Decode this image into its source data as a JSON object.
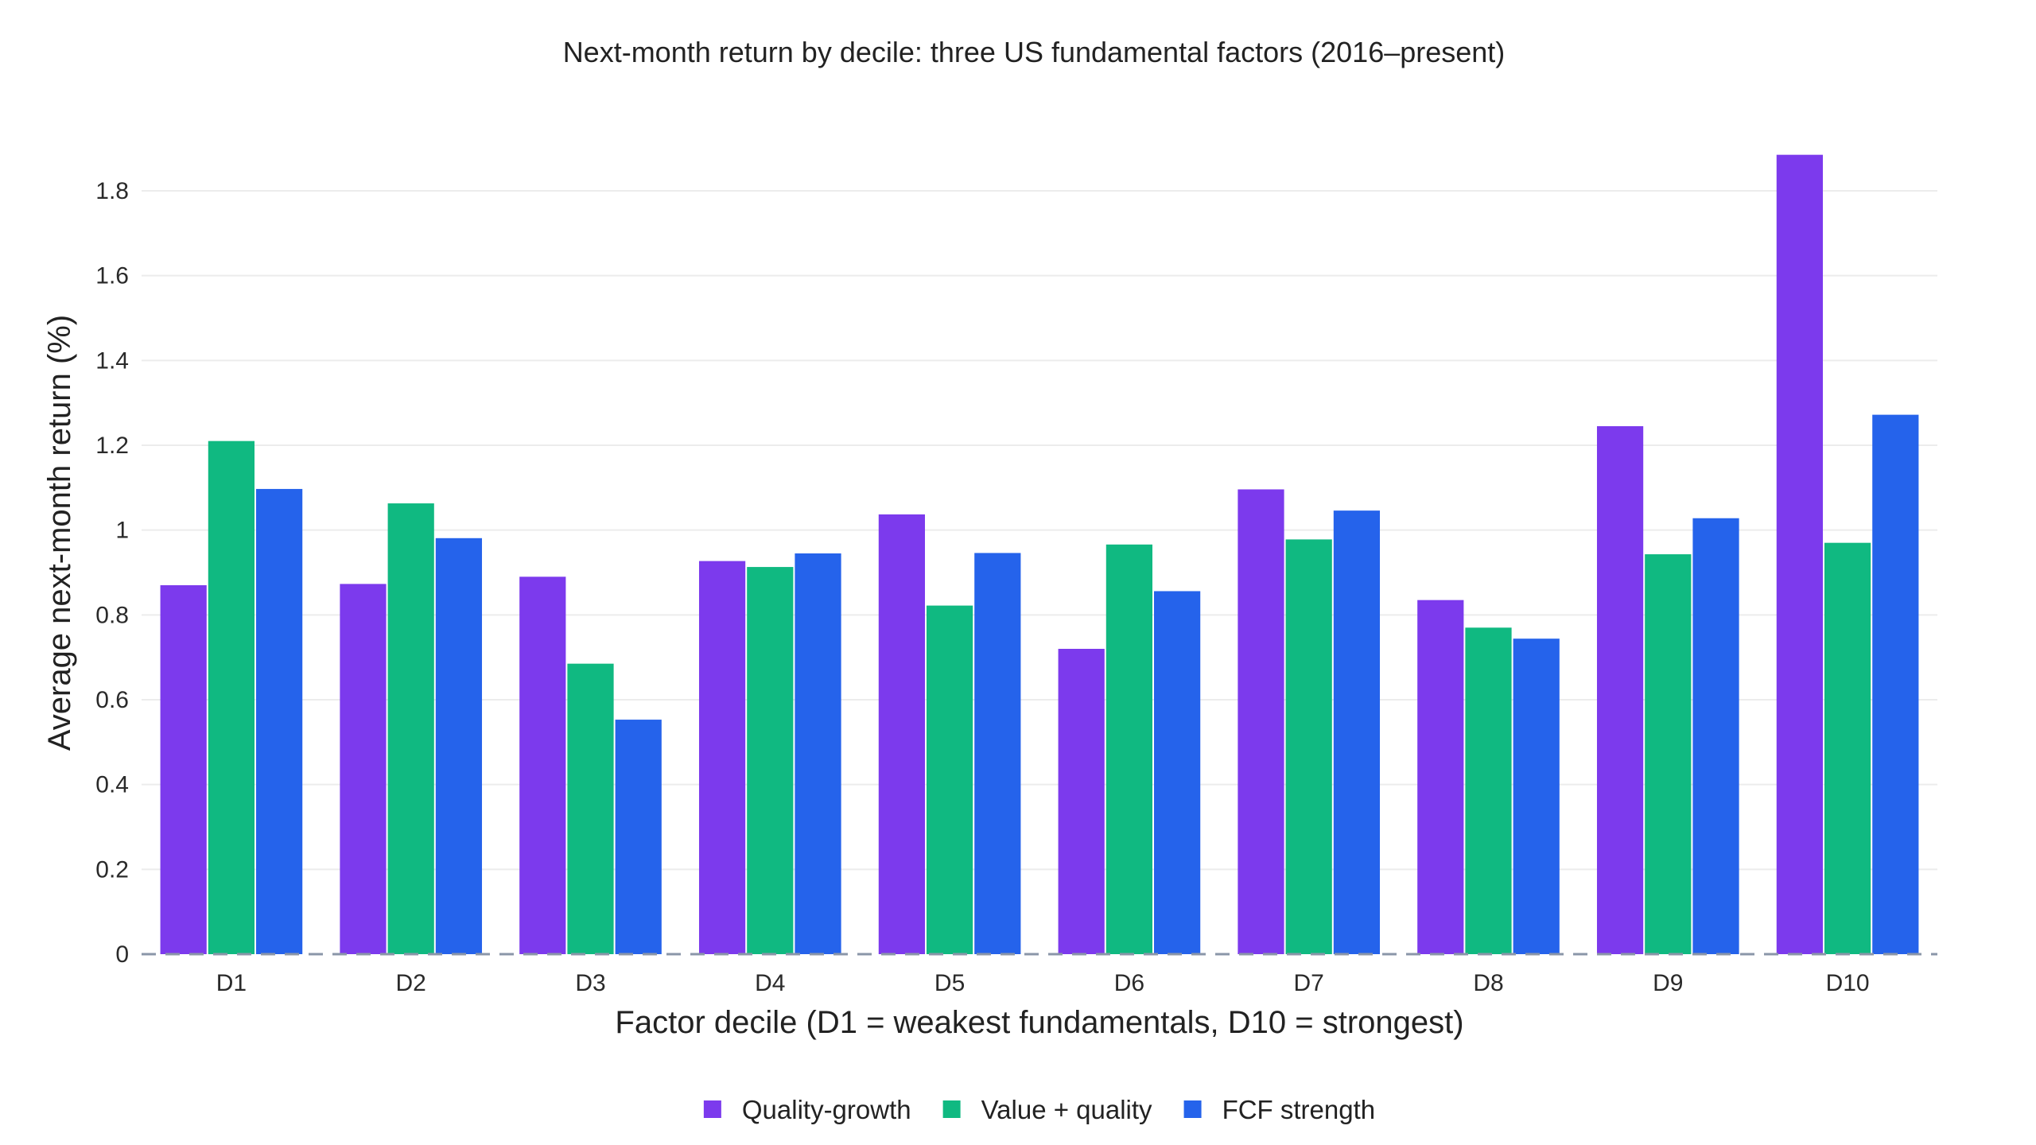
{
  "chart_data": {
    "type": "bar",
    "title": "Next-month return by decile: three US fundamental factors (2016–present)",
    "xlabel": "Factor decile (D1 = weakest fundamentals, D10 = strongest)",
    "ylabel": "Average next-month return (%)",
    "categories": [
      "D1",
      "D2",
      "D3",
      "D4",
      "D5",
      "D6",
      "D7",
      "D8",
      "D9",
      "D10"
    ],
    "series": [
      {
        "name": "Quality-growth",
        "color": "#7c3aed",
        "values": [
          0.87,
          0.873,
          0.89,
          0.927,
          1.037,
          0.72,
          1.096,
          0.835,
          1.245,
          1.885
        ]
      },
      {
        "name": "Value + quality",
        "color": "#10b981",
        "values": [
          1.21,
          1.063,
          0.685,
          0.913,
          0.822,
          0.966,
          0.978,
          0.77,
          0.943,
          0.97
        ]
      },
      {
        "name": "FCF strength",
        "color": "#2563eb",
        "values": [
          1.097,
          0.981,
          0.553,
          0.945,
          0.946,
          0.856,
          1.046,
          0.744,
          1.028,
          1.272
        ]
      }
    ],
    "ylim": [
      0,
      1.95
    ],
    "yticks": [
      0,
      0.2,
      0.4,
      0.6,
      0.8,
      1,
      1.2,
      1.4,
      1.6,
      1.8
    ],
    "ytick_labels": [
      "0",
      "0.2",
      "0.4",
      "0.6",
      "0.8",
      "1",
      "1.2",
      "1.4",
      "1.6",
      "1.8"
    ],
    "grid": true,
    "zero_line": "dashed",
    "legend_placement": "bottom-center"
  }
}
